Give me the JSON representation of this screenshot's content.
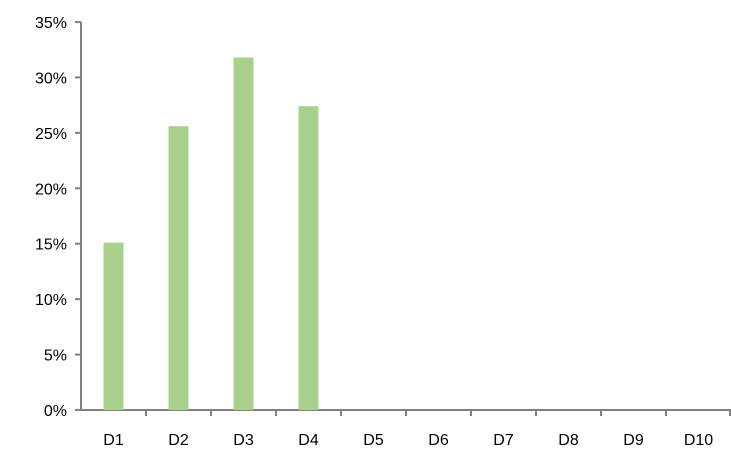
{
  "chart_data": {
    "type": "bar",
    "categories": [
      "D1",
      "D2",
      "D3",
      "D4",
      "D5",
      "D6",
      "D7",
      "D8",
      "D9",
      "D10"
    ],
    "values": [
      15.1,
      25.6,
      31.8,
      27.4,
      null,
      null,
      null,
      null,
      null,
      null
    ],
    "y_unit": "%",
    "ylim": [
      0,
      35
    ],
    "y_ticks": [
      0,
      5,
      10,
      15,
      20,
      25,
      30,
      35
    ],
    "y_tick_labels": [
      "0%",
      "5%",
      "10%",
      "15%",
      "20%",
      "25%",
      "30%",
      "35%"
    ],
    "title": "",
    "xlabel": "",
    "ylabel": "",
    "grid": false,
    "legend": "none",
    "colors": {
      "bar": "#a9d18e",
      "axis": "#808080",
      "text": "#000000"
    }
  }
}
